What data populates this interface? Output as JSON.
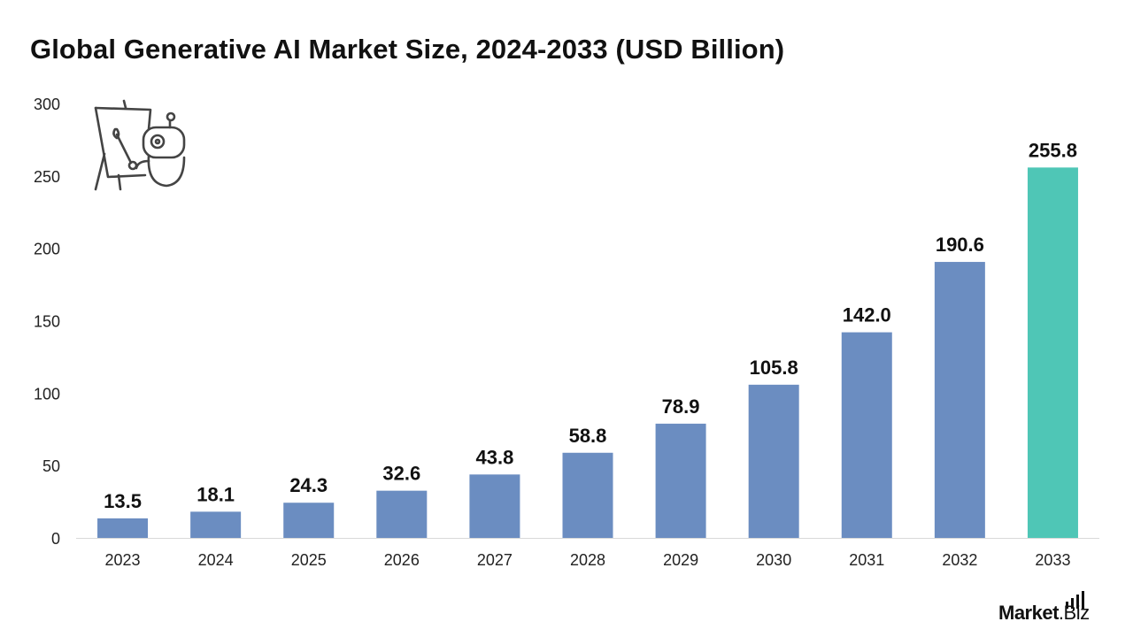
{
  "page": {
    "title": "Global Generative AI Market Size, 2024-2033 (USD Billion)"
  },
  "branding": {
    "logo_main": "Market",
    "logo_suffix": ".Biz",
    "illustration_icon": "robot-painting-easel-icon"
  },
  "colors": {
    "bar": "#6b8dc1",
    "highlight_bar": "#4fc6b6",
    "axis_text": "#222222",
    "label_text": "#111111",
    "axis_line": "#d9d9d9"
  },
  "chart_data": {
    "type": "bar",
    "title": "Global Generative AI Market Size, 2024-2033 (USD Billion)",
    "xlabel": "",
    "ylabel": "",
    "categories": [
      "2023",
      "2024",
      "2025",
      "2026",
      "2027",
      "2028",
      "2029",
      "2030",
      "2031",
      "2032",
      "2033"
    ],
    "values": [
      13.5,
      18.1,
      24.3,
      32.6,
      43.8,
      58.8,
      78.9,
      105.8,
      142.0,
      190.6,
      255.8
    ],
    "value_labels": [
      "13.5",
      "18.1",
      "24.3",
      "32.6",
      "43.8",
      "58.8",
      "78.9",
      "105.8",
      "142.0",
      "190.6",
      "255.8"
    ],
    "highlight_index": 10,
    "ylim": [
      0,
      300
    ],
    "yticks": [
      0,
      50,
      100,
      150,
      200,
      250,
      300
    ],
    "grid": false,
    "legend": "none"
  }
}
